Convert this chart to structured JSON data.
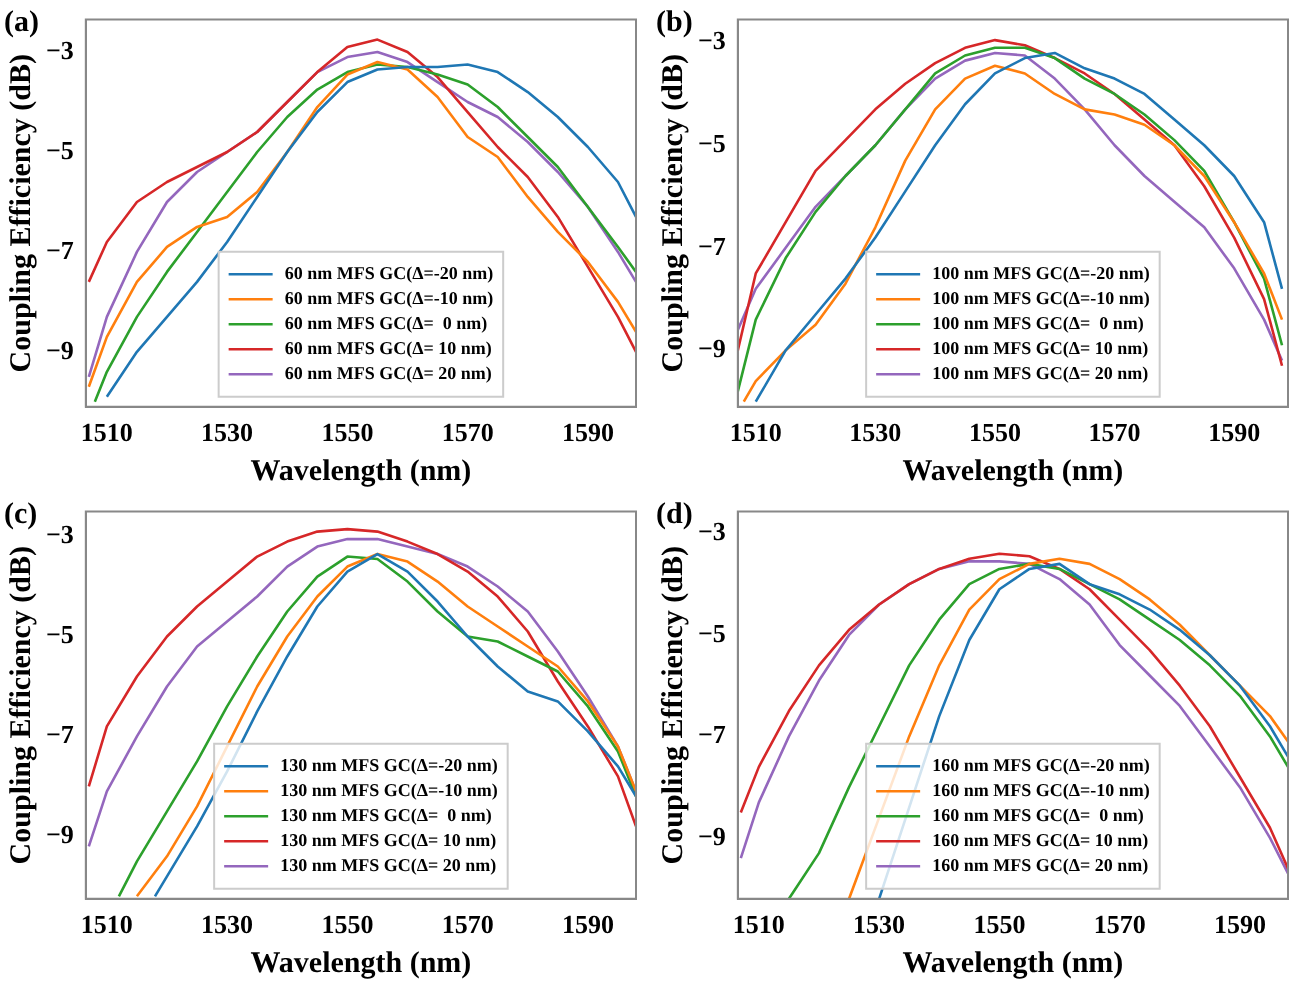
{
  "chart_data": [
    {
      "type": "line",
      "title": "(a)",
      "xlabel": "Wavelength (nm)",
      "ylabel": "Coupling Efficiency (dB)",
      "xlim": [
        1506.5,
        1598
      ],
      "ylim": [
        -10.1,
        -2.35
      ],
      "xticks": [
        1510,
        1530,
        1550,
        1570,
        1590
      ],
      "yticks": [
        -3,
        -5,
        -7,
        -9
      ],
      "legend": "bottom",
      "series": [
        {
          "name": "60 nm MFS GC(Δ=-20 nm)",
          "color": "#1f77b4",
          "x": [
            1510,
            1515,
            1520,
            1525,
            1530,
            1535,
            1540,
            1545,
            1550,
            1555,
            1560,
            1565,
            1570,
            1575,
            1580,
            1585,
            1590,
            1595,
            1598
          ],
          "values": [
            -9.9,
            -9.0,
            -8.3,
            -7.6,
            -6.8,
            -5.9,
            -5.0,
            -4.2,
            -3.6,
            -3.35,
            -3.3,
            -3.3,
            -3.25,
            -3.4,
            -3.8,
            -4.3,
            -4.9,
            -5.6,
            -6.3
          ]
        },
        {
          "name": "60 nm MFS GC(Δ=-10 nm)",
          "color": "#ff7f0e",
          "x": [
            1507,
            1510,
            1515,
            1520,
            1525,
            1530,
            1535,
            1540,
            1545,
            1550,
            1555,
            1560,
            1565,
            1570,
            1575,
            1580,
            1585,
            1590,
            1595,
            1598
          ],
          "values": [
            -9.7,
            -8.7,
            -7.6,
            -6.9,
            -6.5,
            -6.3,
            -5.8,
            -5.0,
            -4.1,
            -3.45,
            -3.2,
            -3.35,
            -3.9,
            -4.7,
            -5.1,
            -5.9,
            -6.6,
            -7.2,
            -8.0,
            -8.6
          ]
        },
        {
          "name": "60 nm MFS GC(Δ=  0 nm)",
          "color": "#2ca02c",
          "x": [
            1508,
            1510,
            1515,
            1520,
            1525,
            1530,
            1535,
            1540,
            1545,
            1550,
            1555,
            1560,
            1565,
            1570,
            1575,
            1580,
            1585,
            1590,
            1595,
            1598
          ],
          "values": [
            -10.0,
            -9.4,
            -8.3,
            -7.4,
            -6.6,
            -5.8,
            -5.0,
            -4.3,
            -3.75,
            -3.4,
            -3.25,
            -3.3,
            -3.45,
            -3.65,
            -4.1,
            -4.7,
            -5.3,
            -6.1,
            -6.9,
            -7.4
          ]
        },
        {
          "name": "60 nm MFS GC(Δ= 10 nm)",
          "color": "#d62728",
          "x": [
            1507,
            1510,
            1515,
            1520,
            1525,
            1530,
            1535,
            1540,
            1545,
            1550,
            1555,
            1560,
            1565,
            1570,
            1575,
            1580,
            1585,
            1590,
            1595,
            1598
          ],
          "values": [
            -7.6,
            -6.8,
            -6.0,
            -5.6,
            -5.3,
            -5.0,
            -4.6,
            -4.0,
            -3.4,
            -2.9,
            -2.75,
            -3.0,
            -3.5,
            -4.2,
            -4.9,
            -5.5,
            -6.3,
            -7.3,
            -8.3,
            -9.0
          ]
        },
        {
          "name": "60 nm MFS GC(Δ= 20 nm)",
          "color": "#9467bd",
          "x": [
            1507,
            1510,
            1515,
            1520,
            1525,
            1530,
            1535,
            1540,
            1545,
            1550,
            1555,
            1560,
            1565,
            1570,
            1575,
            1580,
            1585,
            1590,
            1595,
            1598
          ],
          "values": [
            -9.5,
            -8.3,
            -7.0,
            -6.0,
            -5.4,
            -5.0,
            -4.6,
            -4.0,
            -3.4,
            -3.1,
            -3.0,
            -3.2,
            -3.6,
            -4.0,
            -4.3,
            -4.8,
            -5.4,
            -6.1,
            -7.0,
            -7.6
          ]
        }
      ]
    },
    {
      "type": "line",
      "title": "(b)",
      "xlabel": "Wavelength (nm)",
      "ylabel": "Coupling Efficiency (dB)",
      "xlim": [
        1507,
        1599
      ],
      "ylim": [
        -10.1,
        -2.55
      ],
      "xticks": [
        1510,
        1530,
        1550,
        1570,
        1590
      ],
      "yticks": [
        -3,
        -5,
        -7,
        -9
      ],
      "legend": "bottom",
      "series": [
        {
          "name": "100 nm MFS GC(Δ=-20 nm)",
          "color": "#1f77b4",
          "x": [
            1510,
            1515,
            1520,
            1525,
            1530,
            1535,
            1540,
            1545,
            1550,
            1555,
            1560,
            1565,
            1570,
            1575,
            1580,
            1585,
            1590,
            1595,
            1598
          ],
          "values": [
            -10.0,
            -9.0,
            -8.3,
            -7.6,
            -6.8,
            -5.9,
            -5.0,
            -4.2,
            -3.6,
            -3.3,
            -3.2,
            -3.5,
            -3.7,
            -4.0,
            -4.5,
            -5.0,
            -5.6,
            -6.5,
            -7.8
          ]
        },
        {
          "name": "100 nm MFS GC(Δ=-10 nm)",
          "color": "#ff7f0e",
          "x": [
            1508,
            1510,
            1515,
            1520,
            1525,
            1530,
            1535,
            1540,
            1545,
            1550,
            1555,
            1560,
            1565,
            1570,
            1575,
            1580,
            1585,
            1590,
            1595,
            1598
          ],
          "values": [
            -10.0,
            -9.6,
            -9.0,
            -8.5,
            -7.7,
            -6.6,
            -5.3,
            -4.3,
            -3.7,
            -3.45,
            -3.6,
            -4.0,
            -4.3,
            -4.4,
            -4.6,
            -5.0,
            -5.6,
            -6.5,
            -7.5,
            -8.4
          ]
        },
        {
          "name": "100 nm MFS GC(Δ=  0 nm)",
          "color": "#2ca02c",
          "x": [
            1507,
            1510,
            1515,
            1520,
            1525,
            1530,
            1535,
            1540,
            1545,
            1550,
            1555,
            1560,
            1565,
            1570,
            1575,
            1580,
            1585,
            1590,
            1595,
            1598
          ],
          "values": [
            -9.8,
            -8.4,
            -7.2,
            -6.3,
            -5.6,
            -5.0,
            -4.3,
            -3.6,
            -3.25,
            -3.1,
            -3.1,
            -3.3,
            -3.7,
            -4.0,
            -4.4,
            -4.9,
            -5.5,
            -6.5,
            -7.6,
            -8.9
          ]
        },
        {
          "name": "100 nm MFS GC(Δ= 10 nm)",
          "color": "#d62728",
          "x": [
            1507,
            1510,
            1515,
            1520,
            1525,
            1530,
            1535,
            1540,
            1545,
            1550,
            1555,
            1560,
            1565,
            1570,
            1575,
            1580,
            1585,
            1590,
            1595,
            1598
          ],
          "values": [
            -9.0,
            -7.5,
            -6.5,
            -5.5,
            -4.9,
            -4.3,
            -3.8,
            -3.4,
            -3.1,
            -2.95,
            -3.05,
            -3.3,
            -3.6,
            -4.0,
            -4.5,
            -5.0,
            -5.8,
            -6.8,
            -8.0,
            -9.3
          ]
        },
        {
          "name": "100 nm MFS GC(Δ= 20 nm)",
          "color": "#9467bd",
          "x": [
            1507,
            1510,
            1515,
            1520,
            1525,
            1530,
            1535,
            1540,
            1545,
            1550,
            1555,
            1560,
            1565,
            1570,
            1575,
            1580,
            1585,
            1590,
            1595,
            1598
          ],
          "values": [
            -8.6,
            -7.8,
            -7.0,
            -6.2,
            -5.6,
            -5.0,
            -4.3,
            -3.7,
            -3.35,
            -3.2,
            -3.25,
            -3.7,
            -4.3,
            -5.0,
            -5.6,
            -6.1,
            -6.6,
            -7.4,
            -8.4,
            -9.2
          ]
        }
      ]
    },
    {
      "type": "line",
      "title": "(c)",
      "xlabel": "Wavelength (nm)",
      "ylabel": "Coupling Efficiency (dB)",
      "xlim": [
        1506.5,
        1598
      ],
      "ylim": [
        -10.25,
        -2.5
      ],
      "xticks": [
        1510,
        1530,
        1550,
        1570,
        1590
      ],
      "yticks": [
        -3,
        -5,
        -7,
        -9
      ],
      "legend": "bottom",
      "series": [
        {
          "name": "130 nm MFS GC(Δ=-20 nm)",
          "color": "#1f77b4",
          "x": [
            1518,
            1520,
            1525,
            1530,
            1535,
            1540,
            1545,
            1550,
            1555,
            1560,
            1565,
            1570,
            1575,
            1580,
            1585,
            1590,
            1595,
            1598
          ],
          "values": [
            -10.2,
            -9.8,
            -8.8,
            -7.7,
            -6.5,
            -5.4,
            -4.4,
            -3.7,
            -3.35,
            -3.7,
            -4.3,
            -5.0,
            -5.6,
            -6.1,
            -6.3,
            -6.9,
            -7.6,
            -8.2
          ]
        },
        {
          "name": "130 nm MFS GC(Δ=-10 nm)",
          "color": "#ff7f0e",
          "x": [
            1515,
            1520,
            1525,
            1530,
            1535,
            1540,
            1545,
            1550,
            1555,
            1560,
            1565,
            1570,
            1575,
            1580,
            1585,
            1590,
            1595,
            1598
          ],
          "values": [
            -10.2,
            -9.4,
            -8.4,
            -7.2,
            -6.0,
            -5.0,
            -4.2,
            -3.6,
            -3.35,
            -3.5,
            -3.9,
            -4.4,
            -4.8,
            -5.2,
            -5.6,
            -6.3,
            -7.2,
            -8.1
          ]
        },
        {
          "name": "130 nm MFS GC(Δ=  0 nm)",
          "color": "#2ca02c",
          "x": [
            1512,
            1515,
            1520,
            1525,
            1530,
            1535,
            1540,
            1545,
            1550,
            1555,
            1560,
            1565,
            1570,
            1575,
            1580,
            1585,
            1590,
            1595,
            1598
          ],
          "values": [
            -10.2,
            -9.5,
            -8.5,
            -7.5,
            -6.4,
            -5.4,
            -4.5,
            -3.8,
            -3.4,
            -3.45,
            -3.9,
            -4.5,
            -5.0,
            -5.1,
            -5.4,
            -5.7,
            -6.4,
            -7.3,
            -8.2
          ]
        },
        {
          "name": "130 nm MFS GC(Δ= 10 nm)",
          "color": "#d62728",
          "x": [
            1507,
            1510,
            1515,
            1520,
            1525,
            1530,
            1535,
            1540,
            1545,
            1550,
            1555,
            1560,
            1565,
            1570,
            1575,
            1580,
            1585,
            1590,
            1595,
            1598
          ],
          "values": [
            -8.0,
            -6.8,
            -5.8,
            -5.0,
            -4.4,
            -3.9,
            -3.4,
            -3.1,
            -2.9,
            -2.85,
            -2.9,
            -3.1,
            -3.35,
            -3.7,
            -4.2,
            -4.9,
            -5.9,
            -6.8,
            -7.8,
            -8.8
          ]
        },
        {
          "name": "130 nm MFS GC(Δ= 20 nm)",
          "color": "#9467bd",
          "x": [
            1507,
            1510,
            1515,
            1520,
            1525,
            1530,
            1535,
            1540,
            1545,
            1550,
            1555,
            1560,
            1565,
            1570,
            1575,
            1580,
            1585,
            1590,
            1595,
            1598
          ],
          "values": [
            -9.2,
            -8.1,
            -7.0,
            -6.0,
            -5.2,
            -4.7,
            -4.2,
            -3.6,
            -3.2,
            -3.05,
            -3.05,
            -3.2,
            -3.35,
            -3.6,
            -4.0,
            -4.5,
            -5.3,
            -6.2,
            -7.2,
            -8.1
          ]
        }
      ]
    },
    {
      "type": "line",
      "title": "(d)",
      "xlabel": "Wavelength (nm)",
      "ylabel": "Coupling Efficiency (dB)",
      "xlim": [
        1506.5,
        1598
      ],
      "ylim": [
        -10.2,
        -2.57
      ],
      "xticks": [
        1510,
        1530,
        1550,
        1570,
        1590
      ],
      "yticks": [
        -3,
        -5,
        -7,
        -9
      ],
      "legend": "bottom",
      "series": [
        {
          "name": "160 nm MFS GC(Δ=-20 nm)",
          "color": "#1f77b4",
          "x": [
            1530,
            1540,
            1545,
            1550,
            1555,
            1560,
            1565,
            1570,
            1575,
            1580,
            1585,
            1590,
            1595,
            1598
          ],
          "values": [
            -10.2,
            -6.6,
            -5.1,
            -4.1,
            -3.7,
            -3.6,
            -4.0,
            -4.2,
            -4.5,
            -4.9,
            -5.4,
            -6.0,
            -6.8,
            -7.4
          ]
        },
        {
          "name": "160 nm MFS GC(Δ=-10 nm)",
          "color": "#ff7f0e",
          "x": [
            1525,
            1530,
            1535,
            1540,
            1545,
            1550,
            1555,
            1560,
            1565,
            1570,
            1575,
            1580,
            1585,
            1590,
            1595,
            1598
          ],
          "values": [
            -10.2,
            -8.6,
            -7.0,
            -5.6,
            -4.5,
            -3.9,
            -3.6,
            -3.5,
            -3.6,
            -3.9,
            -4.3,
            -4.8,
            -5.4,
            -6.0,
            -6.6,
            -7.1
          ]
        },
        {
          "name": "160 nm MFS GC(Δ=  0 nm)",
          "color": "#2ca02c",
          "x": [
            1515,
            1520,
            1525,
            1530,
            1535,
            1540,
            1545,
            1550,
            1555,
            1560,
            1565,
            1570,
            1575,
            1580,
            1585,
            1590,
            1595,
            1598
          ],
          "values": [
            -10.2,
            -9.3,
            -8.0,
            -6.8,
            -5.6,
            -4.7,
            -4.0,
            -3.7,
            -3.6,
            -3.7,
            -4.0,
            -4.3,
            -4.7,
            -5.1,
            -5.6,
            -6.2,
            -7.0,
            -7.6
          ]
        },
        {
          "name": "160 nm MFS GC(Δ= 10 nm)",
          "color": "#d62728",
          "x": [
            1507,
            1510,
            1515,
            1520,
            1525,
            1530,
            1535,
            1540,
            1545,
            1550,
            1555,
            1560,
            1565,
            1570,
            1575,
            1580,
            1585,
            1590,
            1595,
            1598
          ],
          "values": [
            -8.5,
            -7.6,
            -6.5,
            -5.6,
            -4.9,
            -4.4,
            -4.0,
            -3.7,
            -3.5,
            -3.4,
            -3.45,
            -3.7,
            -4.1,
            -4.7,
            -5.3,
            -6.0,
            -6.8,
            -7.8,
            -8.8,
            -9.6
          ]
        },
        {
          "name": "160 nm MFS GC(Δ= 20 nm)",
          "color": "#9467bd",
          "x": [
            1507,
            1510,
            1515,
            1520,
            1525,
            1530,
            1535,
            1540,
            1545,
            1550,
            1555,
            1560,
            1565,
            1570,
            1575,
            1580,
            1585,
            1590,
            1595,
            1598
          ],
          "values": [
            -9.4,
            -8.3,
            -7.0,
            -5.9,
            -5.0,
            -4.4,
            -4.0,
            -3.7,
            -3.55,
            -3.55,
            -3.6,
            -3.9,
            -4.4,
            -5.2,
            -5.8,
            -6.4,
            -7.2,
            -8.0,
            -9.0,
            -9.7
          ]
        }
      ]
    }
  ]
}
